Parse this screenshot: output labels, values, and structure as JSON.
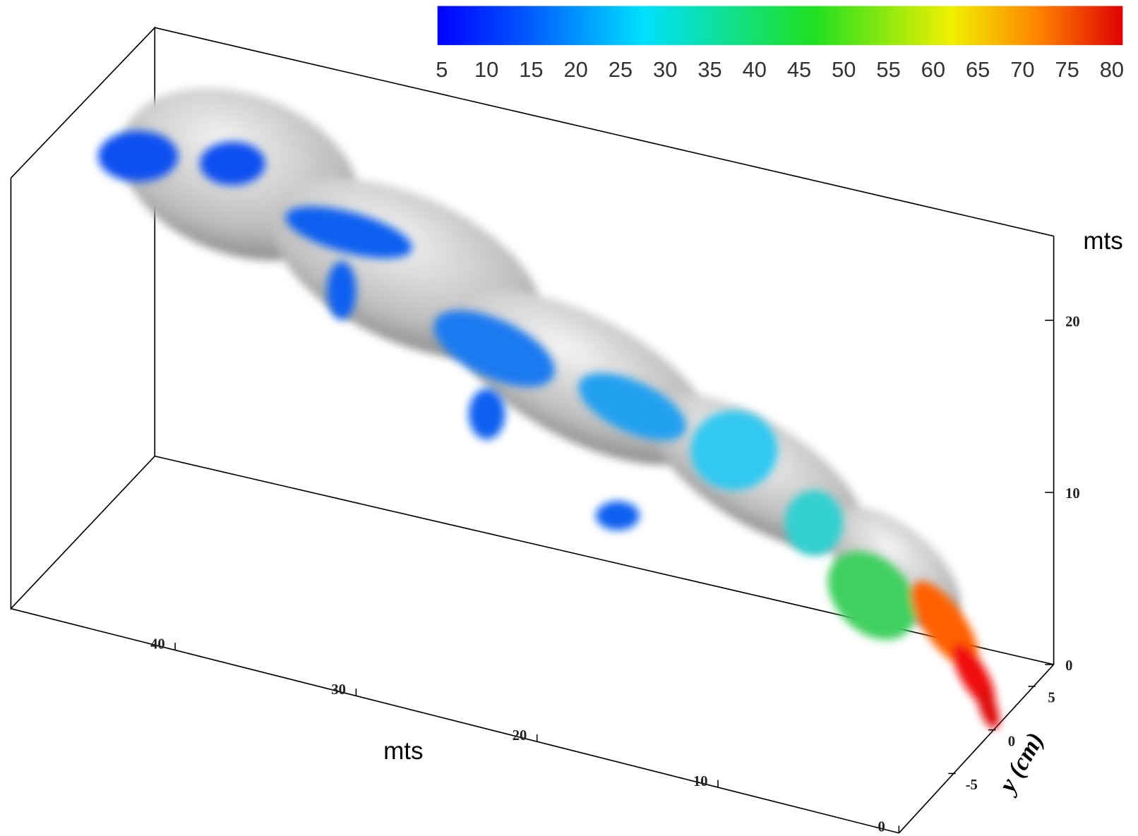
{
  "colorbar": {
    "ticks": [
      5,
      10,
      15,
      20,
      25,
      30,
      35,
      40,
      45,
      50,
      55,
      60,
      65,
      70,
      75,
      80
    ]
  },
  "axes": {
    "x": {
      "label": "mts",
      "ticks": [
        0,
        10,
        20,
        30,
        40
      ]
    },
    "z": {
      "label": "mts",
      "ticks": [
        0,
        10,
        20
      ]
    },
    "y": {
      "label": "y (cm)",
      "ticks": [
        -5,
        0,
        5
      ]
    }
  }
}
